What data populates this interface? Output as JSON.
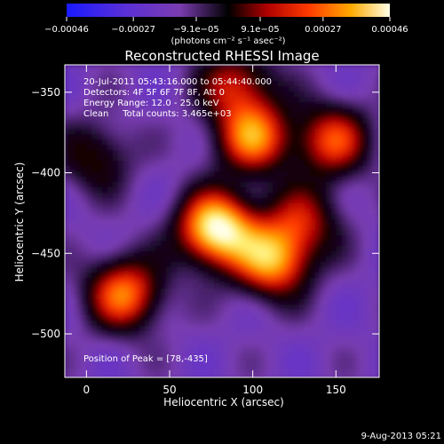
{
  "chart_data": {
    "type": "heatmap",
    "title": "Reconstructed RHESSI Image",
    "xlabel": "Heliocentric X (arcsec)",
    "ylabel": "Heliocentric Y (arcsec)",
    "xlim": [
      -13,
      176
    ],
    "ylim": [
      -527,
      -333
    ],
    "x_ticks": [
      "0",
      "50",
      "100",
      "150"
    ],
    "x_tick_values": [
      0,
      50,
      100,
      150
    ],
    "y_ticks": [
      "−350",
      "−400",
      "−450",
      "−500"
    ],
    "y_tick_values": [
      -350,
      -400,
      -450,
      -500
    ],
    "colorbar": {
      "tick_labels": [
        "−0.00046",
        "−0.00027",
        "−9.1e−05",
        "9.1e−05",
        "0.00027",
        "0.00046"
      ],
      "tick_values": [
        -0.00046,
        -0.00027,
        -9.1e-05,
        9.1e-05,
        0.00027,
        0.00046
      ],
      "range": [
        -0.00046,
        0.00046
      ],
      "unit_label": "(photons cm⁻² s⁻¹ asec⁻²)",
      "colormap": "RHESSI red-temperature (blue-purple negative, black, red, orange, yellow, white positive)"
    },
    "annotations": {
      "line1": "20-Jul-2011 05:43:16.000 to 05:44:40.000",
      "line2": "Detectors: 4F 5F 6F 7F 8F, Att 0",
      "line3": "Energy Range: 12.0 - 25.0 keV",
      "line4": "Clean     Total counts: 3.465e+03",
      "peak": "Position of Peak = [78,-435]"
    },
    "peak_position": [
      78,
      -435
    ],
    "timestamp": "9-Aug-2013 05:21",
    "bright_sources": [
      {
        "x": 78,
        "y": -435,
        "rel_intensity": 1.0
      },
      {
        "x": 112,
        "y": -455,
        "rel_intensity": 0.75
      },
      {
        "x": 100,
        "y": -378,
        "rel_intensity": 0.7
      },
      {
        "x": 148,
        "y": -380,
        "rel_intensity": 0.6
      },
      {
        "x": 23,
        "y": -475,
        "rel_intensity": 0.7
      },
      {
        "x": 90,
        "y": -345,
        "rel_intensity": 0.5
      },
      {
        "x": 5,
        "y": -390,
        "rel_intensity": 0.35
      },
      {
        "x": 130,
        "y": -430,
        "rel_intensity": 0.45
      }
    ]
  }
}
